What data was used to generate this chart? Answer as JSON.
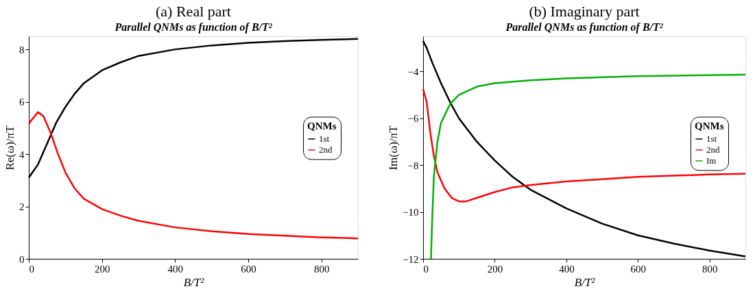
{
  "chart_data": [
    {
      "type": "line",
      "title": "(a) Real part",
      "subtitle": "Parallel QNMs as function of B/T²",
      "xlabel": "B/T²",
      "ylabel": "Re(ω)/πT",
      "legend_title": "QNMs",
      "legend": "right",
      "grid": false,
      "xlim": [
        0,
        900
      ],
      "ylim": [
        0,
        8.5
      ],
      "xticks": [
        0,
        200,
        400,
        600,
        800
      ],
      "yticks": [
        0,
        2,
        4,
        6,
        8
      ],
      "series": [
        {
          "name": "1st",
          "color": "#000000",
          "x": [
            0,
            10,
            25,
            50,
            75,
            100,
            125,
            150,
            200,
            250,
            300,
            400,
            500,
            600,
            700,
            800,
            900
          ],
          "values": [
            3.1,
            3.3,
            3.6,
            4.4,
            5.2,
            5.8,
            6.3,
            6.7,
            7.2,
            7.5,
            7.75,
            8.0,
            8.15,
            8.25,
            8.32,
            8.36,
            8.4
          ]
        },
        {
          "name": "2nd",
          "color": "#ff0000",
          "x": [
            0,
            10,
            25,
            40,
            60,
            80,
            100,
            125,
            150,
            200,
            250,
            300,
            400,
            500,
            600,
            700,
            800,
            900
          ],
          "values": [
            5.15,
            5.35,
            5.6,
            5.45,
            4.8,
            4.0,
            3.3,
            2.7,
            2.3,
            1.9,
            1.65,
            1.45,
            1.2,
            1.05,
            0.95,
            0.88,
            0.82,
            0.78
          ]
        }
      ]
    },
    {
      "type": "line",
      "title": "(b) Imaginary part",
      "subtitle": "Parallel QNMs as function of B/T²",
      "xlabel": "B/T²",
      "ylabel": "Im(ω)/πT",
      "legend_title": "QNMs",
      "legend": "right",
      "grid": false,
      "xlim": [
        0,
        900
      ],
      "ylim": [
        -12,
        -2.5
      ],
      "xticks": [
        0,
        200,
        400,
        600,
        800
      ],
      "yticks": [
        -12,
        -10,
        -8,
        -6,
        -4
      ],
      "series": [
        {
          "name": "1st",
          "color": "#000000",
          "x": [
            0,
            10,
            25,
            50,
            75,
            100,
            150,
            200,
            250,
            300,
            400,
            500,
            600,
            700,
            800,
            900
          ],
          "values": [
            -2.7,
            -3.0,
            -3.6,
            -4.5,
            -5.3,
            -6.0,
            -7.0,
            -7.8,
            -8.5,
            -9.05,
            -9.85,
            -10.5,
            -11.0,
            -11.35,
            -11.65,
            -11.9
          ]
        },
        {
          "name": "2nd",
          "color": "#ff0000",
          "x": [
            0,
            10,
            20,
            30,
            40,
            60,
            80,
            100,
            120,
            150,
            200,
            250,
            300,
            400,
            500,
            600,
            700,
            800,
            900
          ],
          "values": [
            -4.75,
            -5.3,
            -6.6,
            -7.6,
            -8.3,
            -9.0,
            -9.4,
            -9.55,
            -9.55,
            -9.4,
            -9.15,
            -8.95,
            -8.85,
            -8.7,
            -8.6,
            -8.5,
            -8.45,
            -8.4,
            -8.37
          ]
        },
        {
          "name": "Im",
          "color": "#00b000",
          "x": [
            22,
            25,
            30,
            40,
            50,
            75,
            100,
            150,
            200,
            300,
            400,
            500,
            600,
            700,
            800,
            900
          ],
          "values": [
            -12,
            -10.5,
            -8.5,
            -7.0,
            -6.2,
            -5.4,
            -5.0,
            -4.65,
            -4.5,
            -4.38,
            -4.3,
            -4.25,
            -4.2,
            -4.18,
            -4.16,
            -4.14
          ]
        }
      ]
    }
  ]
}
